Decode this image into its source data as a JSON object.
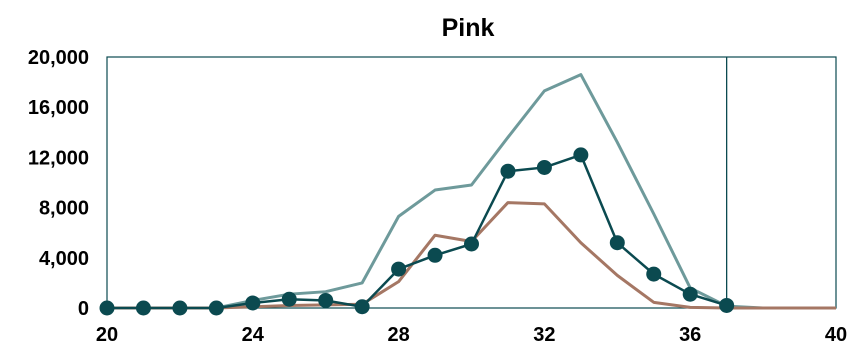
{
  "chart_data": {
    "type": "line",
    "title": "Pink",
    "xlabel": "",
    "ylabel": "",
    "xlim": [
      20,
      40
    ],
    "ylim": [
      0,
      20000
    ],
    "x_ticks": [
      20,
      24,
      28,
      32,
      36,
      40
    ],
    "y_ticks": [
      0,
      4000,
      8000,
      12000,
      16000,
      20000
    ],
    "y_tick_labels": [
      "0",
      "4,000",
      "8,000",
      "12,000",
      "16,000",
      "20,000"
    ],
    "reference_line_x": 37,
    "grid": false,
    "legend": "none",
    "series": [
      {
        "style": "line",
        "color": "#6e9a9b",
        "x": [
          20,
          21,
          22,
          23,
          24,
          25,
          26,
          27,
          28,
          29,
          30,
          31,
          32,
          33,
          34,
          35,
          36,
          37,
          38,
          39,
          40
        ],
        "values": [
          0,
          0,
          0,
          0,
          600,
          1100,
          1300,
          2000,
          7300,
          9400,
          9800,
          13600,
          17300,
          18600,
          13200,
          7500,
          1600,
          150,
          0,
          0,
          0
        ]
      },
      {
        "style": "line",
        "color": "#a57764",
        "x": [
          20,
          21,
          22,
          23,
          24,
          25,
          26,
          27,
          28,
          29,
          30,
          31,
          32,
          33,
          34,
          35,
          36,
          37,
          38,
          39,
          40
        ],
        "values": [
          0,
          0,
          0,
          0,
          100,
          200,
          250,
          300,
          2100,
          5800,
          5300,
          8400,
          8300,
          5200,
          2600,
          450,
          50,
          0,
          0,
          0,
          0
        ]
      },
      {
        "style": "line-markers",
        "color": "#0b4a50",
        "x": [
          20,
          21,
          22,
          23,
          24,
          25,
          26,
          27,
          28,
          29,
          30,
          31,
          32,
          33,
          34,
          35,
          36,
          37
        ],
        "values": [
          0,
          0,
          0,
          0,
          400,
          700,
          600,
          100,
          3100,
          4200,
          5100,
          10900,
          11200,
          12200,
          5200,
          2700,
          1100,
          200
        ]
      }
    ]
  }
}
